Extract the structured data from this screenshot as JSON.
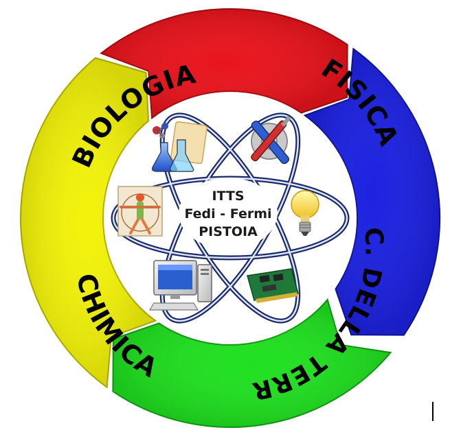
{
  "segments": [
    {
      "id": "biologia",
      "label": "BIOLOGIA",
      "color": "#e8141c",
      "edge": "#a30d12"
    },
    {
      "id": "fisica",
      "label": "FISICA",
      "color": "#1c22e0",
      "edge": "#10139a"
    },
    {
      "id": "scienze",
      "label": "SC. DELLA TERRA",
      "color": "#20e020",
      "edge": "#129a12"
    },
    {
      "id": "chimica",
      "label": "CHIMICA",
      "color": "#f2f20a",
      "edge": "#b0b000"
    }
  ],
  "center": {
    "line1": "ITTS",
    "line2": "Fedi - Fermi",
    "line3": "PISTOIA"
  },
  "icons": [
    "chemistry-flasks-icon",
    "tools-wrench-screwdriver-icon",
    "lightbulb-icon",
    "circuit-board-icon",
    "desktop-computer-icon",
    "vitruvian-man-icon"
  ],
  "colors": {
    "orbit": "#1b2a6b",
    "orbit_highlight": "#dfe6f5"
  }
}
